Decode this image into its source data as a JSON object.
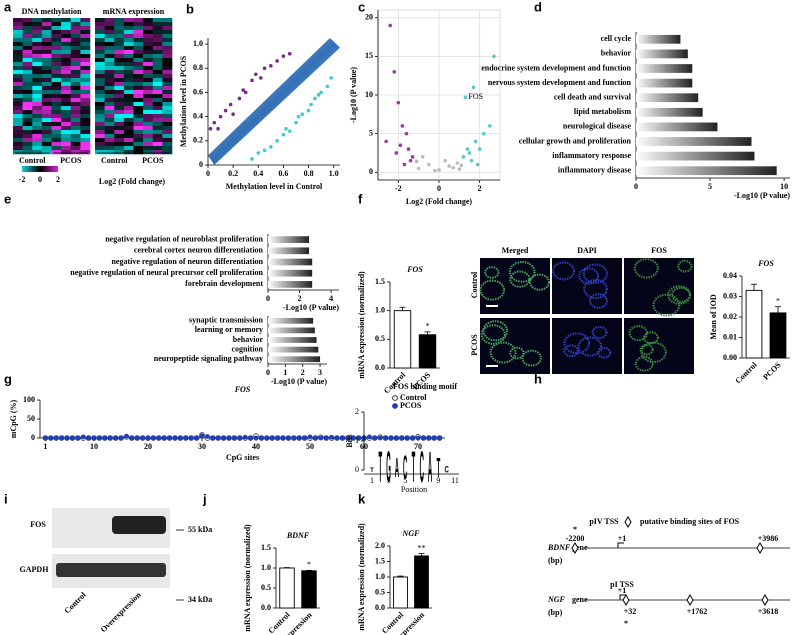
{
  "panel_letters": [
    "a",
    "b",
    "c",
    "d",
    "e",
    "f",
    "g",
    "h",
    "i",
    "j",
    "k"
  ],
  "heatmap": {
    "titles": [
      "DNA methylation",
      "mRNA expression"
    ],
    "groups": [
      "Control",
      "PCOS"
    ],
    "colorbar_ticks": [
      -2,
      0,
      2
    ],
    "colorbar_label": "Log2 (Fold change)"
  },
  "chart_data": [
    {
      "type": "scatter",
      "xlabel": "Methylation level in Control",
      "ylabel": "Methylation level in PCOS",
      "xlim": [
        0,
        1.05
      ],
      "ylim": [
        0,
        1.05
      ],
      "xticks": [
        0,
        0.2,
        0.4,
        0.6,
        0.8,
        {
          "value": 1,
          "label": "1.0"
        }
      ],
      "yticks": [
        0,
        0.2,
        0.4,
        0.6,
        0.8,
        {
          "value": 1,
          "label": "1.0"
        }
      ],
      "density": true,
      "series": [
        {
          "color": "#7b2a8a",
          "x": [
            0.02,
            0.05,
            0.08,
            0.1,
            0.14,
            0.18,
            0.2,
            0.25,
            0.28,
            0.3,
            0.35,
            0.38,
            0.42,
            0.45,
            0.5,
            0.55,
            0.6,
            0.65
          ],
          "y": [
            0.3,
            0.35,
            0.3,
            0.4,
            0.45,
            0.5,
            0.42,
            0.55,
            0.62,
            0.6,
            0.7,
            0.75,
            0.72,
            0.8,
            0.82,
            0.86,
            0.9,
            0.92
          ]
        },
        {
          "color": "#3ec9d6",
          "x": [
            0.35,
            0.4,
            0.45,
            0.5,
            0.55,
            0.6,
            0.62,
            0.65,
            0.7,
            0.72,
            0.75,
            0.8,
            0.82,
            0.85,
            0.88,
            0.9,
            0.95,
            0.98
          ],
          "y": [
            0.05,
            0.1,
            0.12,
            0.15,
            0.2,
            0.25,
            0.3,
            0.28,
            0.35,
            0.4,
            0.42,
            0.45,
            0.5,
            0.55,
            0.58,
            0.6,
            0.65,
            0.72
          ]
        }
      ]
    },
    {
      "type": "scatter",
      "xlabel": "Log2 (Fold change)",
      "ylabel": "-Log10 (P value)",
      "grid": true,
      "xlim": [
        -3,
        3
      ],
      "ylim": [
        -1,
        21
      ],
      "xticks": [
        -2,
        0,
        2
      ],
      "yticks": [
        0,
        5,
        10,
        15,
        20
      ],
      "series": [
        {
          "color": "#9b3a9b",
          "x": [
            -2.4,
            -2.2,
            -2.0,
            -1.8,
            -1.6,
            -1.5,
            -1.3,
            -2.6,
            -1.9,
            -1.4,
            -2.1,
            -1.7
          ],
          "y": [
            19,
            13,
            9,
            6,
            5,
            3,
            2,
            4,
            3.5,
            1.5,
            2.5,
            1
          ]
        },
        {
          "color": "#5cc6d0",
          "x": [
            1.2,
            1.4,
            1.6,
            1.8,
            2.0,
            2.2,
            2.5,
            1.3,
            1.5,
            1.9,
            2.7,
            1.7
          ],
          "y": [
            2,
            3,
            1.5,
            4,
            3,
            5,
            6,
            9.7,
            2.5,
            1,
            15,
            11
          ]
        },
        {
          "color": "#bbbbbb",
          "x": [
            -1,
            -0.5,
            0,
            0.5,
            1,
            -0.8,
            0.3,
            0.7,
            -0.2,
            0.9,
            -1.1,
            1.1
          ],
          "y": [
            0.5,
            1,
            0.3,
            0.8,
            0.4,
            2,
            1.5,
            0.6,
            0.2,
            1.2,
            1.4,
            0.9
          ]
        }
      ],
      "annotations": [
        {
          "text": "FOS",
          "x": 1.3,
          "y": 9.7
        }
      ]
    },
    {
      "type": "hbar",
      "xlabel": "-Log10 (P value)",
      "xlim": [
        0,
        10.4
      ],
      "xticks": [
        0,
        5,
        10
      ],
      "categories": [
        "cell cycle",
        "behavior",
        "endocrine system development and function",
        "nervous system development and function",
        "cell death and survival",
        "lipid metabolism",
        "neurological disease",
        "cellular growth and proliferation",
        "inflammatory response",
        "inflammatory disease"
      ],
      "values": [
        3,
        3.5,
        3.8,
        3.8,
        4.2,
        4.5,
        5.5,
        7.8,
        8,
        9.5
      ]
    },
    {
      "type": "hbar",
      "xlabel": "-Log10 (P value)",
      "xlim": [
        0,
        4.5
      ],
      "xticks": [
        0,
        2,
        4
      ],
      "categories": [
        "negative regulation of neuroblast proliferation",
        "cerebral cortex neuron differentiation",
        "negative regulation of neuron differentiation",
        "negative regulation of neural precursor cell proliferation",
        "forebrain development"
      ],
      "values": [
        2.6,
        2.6,
        2.8,
        2.8,
        2.8
      ]
    },
    {
      "type": "hbar",
      "xlabel": "-Log10 (P value)",
      "xlim": [
        0,
        3.4
      ],
      "xticks": [
        0,
        1,
        2,
        3
      ],
      "categories": [
        "synaptic transmission",
        "learning or memory",
        "behavior",
        "cognition",
        "neuropeptide signaling pathway"
      ],
      "values": [
        2.6,
        2.7,
        2.8,
        2.9,
        3.0
      ]
    },
    {
      "type": "bar",
      "title": "FOS",
      "ylabel": "mRNA expression (normalized)",
      "categories": [
        "Control",
        "PCOS"
      ],
      "values": [
        1.0,
        0.58
      ],
      "errors": [
        0.06,
        0.05
      ],
      "colors": [
        "#ffffff",
        "#000000"
      ],
      "ylim": [
        0,
        1.5
      ],
      "yticks": [
        {
          "value": 0,
          "label": "0.0"
        },
        0.5,
        {
          "value": 1,
          "label": "1.0"
        },
        1.5
      ],
      "annotations": [
        {
          "text": "*",
          "index": 1
        }
      ]
    },
    {
      "type": "bar",
      "title": "FOS",
      "ylabel": "Mean of IOD",
      "categories": [
        "Control",
        "PCOS"
      ],
      "values": [
        0.033,
        0.022
      ],
      "errors": [
        0.003,
        0.003
      ],
      "colors": [
        "#ffffff",
        "#000000"
      ],
      "ylim": [
        0,
        0.04
      ],
      "yticks": [
        {
          "value": 0,
          "label": "0.00"
        },
        0.01,
        0.02,
        0.03,
        0.04
      ],
      "annotations": [
        {
          "text": "*",
          "index": 1
        }
      ]
    },
    {
      "type": "line",
      "title": "FOS",
      "xlabel": "CpG sites",
      "ylabel": "mCpG (%)",
      "xlim": [
        0,
        75
      ],
      "ylim": [
        0,
        100
      ],
      "xticks": [
        1,
        10,
        20,
        30,
        40,
        50,
        60,
        70
      ],
      "yticks": [
        0,
        50,
        100
      ],
      "legend": "upper right",
      "x": [
        1,
        2,
        3,
        4,
        5,
        6,
        7,
        8,
        9,
        10,
        11,
        12,
        13,
        14,
        15,
        16,
        17,
        18,
        19,
        20,
        21,
        22,
        23,
        24,
        25,
        26,
        27,
        28,
        29,
        30,
        31,
        32,
        33,
        34,
        35,
        36,
        37,
        38,
        39,
        40,
        41,
        42,
        43,
        44,
        45,
        46,
        47,
        48,
        49,
        50,
        51,
        52,
        53,
        54,
        55,
        56,
        57,
        58,
        59,
        60,
        61,
        62,
        63,
        64,
        65,
        66,
        67,
        68,
        69,
        70,
        71,
        72,
        73,
        74
      ],
      "series": [
        {
          "name": "Control",
          "color": "#333333",
          "marker": "open",
          "values": [
            0,
            0,
            0,
            0,
            0,
            0,
            0,
            0,
            0,
            0,
            0,
            0,
            0,
            0,
            0,
            3,
            0,
            0,
            0,
            0,
            0,
            0,
            0,
            0,
            0,
            0,
            0,
            0,
            0,
            8,
            0,
            0,
            0,
            0,
            0,
            0,
            0,
            0,
            0,
            5,
            0,
            0,
            0,
            0,
            0,
            0,
            0,
            0,
            0,
            0,
            0,
            2,
            0,
            0,
            0,
            0,
            0,
            0,
            0,
            0,
            0,
            0,
            2,
            0,
            0,
            0,
            0,
            0,
            0,
            3,
            0,
            0,
            0,
            0
          ]
        },
        {
          "name": "PCOS",
          "color": "#1f3fbf",
          "marker": "filled",
          "values": [
            0,
            0,
            0,
            0,
            0,
            0,
            0,
            3,
            0,
            0,
            0,
            0,
            0,
            0,
            0,
            5,
            0,
            0,
            0,
            0,
            0,
            0,
            0,
            0,
            0,
            0,
            0,
            0,
            0,
            6,
            4,
            0,
            0,
            0,
            0,
            0,
            0,
            2,
            0,
            0,
            0,
            0,
            0,
            0,
            0,
            0,
            0,
            0,
            0,
            3,
            0,
            0,
            0,
            2,
            0,
            0,
            0,
            0,
            0,
            0,
            3,
            0,
            0,
            0,
            0,
            0,
            0,
            0,
            0,
            0,
            0,
            0,
            0,
            0
          ]
        }
      ]
    },
    {
      "type": "bar",
      "title": "BDNF",
      "ylabel": "mRNA expression (normalized)",
      "categories": [
        "Control",
        "Overexpression"
      ],
      "values": [
        1.0,
        0.93
      ],
      "errors": [
        0.01,
        0.01
      ],
      "colors": [
        "#ffffff",
        "#000000"
      ],
      "ylim": [
        0,
        1.5
      ],
      "yticks": [
        {
          "value": 0,
          "label": "0.0"
        },
        0.5,
        {
          "value": 1,
          "label": "1.0"
        },
        1.5
      ],
      "annotations": [
        {
          "text": "*",
          "index": 1
        }
      ]
    },
    {
      "type": "bar",
      "title": "NGF",
      "ylabel": "mRNA expression (normalized)",
      "categories": [
        "Control",
        "Overexpression"
      ],
      "values": [
        1.0,
        1.68
      ],
      "errors": [
        0.03,
        0.08
      ],
      "colors": [
        "#ffffff",
        "#000000"
      ],
      "ylim": [
        0,
        2
      ],
      "yticks": [
        {
          "value": 0,
          "label": "0.0"
        },
        0.5,
        {
          "value": 1,
          "label": "1.0"
        },
        1.5,
        {
          "value": 2,
          "label": "2.0"
        }
      ],
      "annotations": [
        {
          "text": "**",
          "index": 1
        }
      ]
    }
  ],
  "microscopy": {
    "columns": [
      "Merged",
      "DAPI",
      "FOS"
    ],
    "rows": [
      "Control",
      "PCOS"
    ]
  },
  "motif": {
    "title": "FOS binding motif",
    "ylabel": "Bits",
    "xlabel": "Position",
    "yticks": [
      0,
      1,
      2
    ],
    "xticks": [
      1,
      3,
      5,
      7,
      9,
      11
    ],
    "letters": [
      {
        "letter": "T",
        "position": 2,
        "bits": 1.9,
        "color": "#e03020"
      },
      {
        "letter": "G",
        "position": 3,
        "bits": 1.9,
        "color": "#f0a020"
      },
      {
        "letter": "A",
        "position": 4,
        "bits": 1.2,
        "color": "#20a040"
      },
      {
        "letter": "C",
        "position": 5,
        "bits": 1.5,
        "color": "#2040d0"
      },
      {
        "letter": "T",
        "position": 6,
        "bits": 1.9,
        "color": "#e03020"
      },
      {
        "letter": "C",
        "position": 7,
        "bits": 1.9,
        "color": "#2040d0"
      },
      {
        "letter": "A",
        "position": 8,
        "bits": 1.9,
        "color": "#20a040"
      },
      {
        "letter": "T",
        "position": 9,
        "bits": 1.2,
        "color": "#e03020"
      },
      {
        "letter": "C",
        "position": 10,
        "bits": 0.4,
        "color": "#2040d0"
      },
      {
        "letter": "T",
        "position": 1,
        "bits": 0.3,
        "color": "#e03020"
      }
    ]
  },
  "genes": {
    "legend": "putative binding sites of FOS",
    "unit": "(bp)",
    "star": "*",
    "rows": [
      {
        "name": "BDNF",
        "suffix": "gene",
        "tss": "pIV TSS",
        "labels": [
          "-2200",
          "+1",
          "+3986"
        ]
      },
      {
        "name": "NGF",
        "suffix": "gene",
        "tss": "pI TSS",
        "labels": [
          "+1",
          "+32",
          "+1762",
          "+3618"
        ]
      }
    ]
  },
  "blot": {
    "bands": [
      "FOS",
      "GAPDH"
    ],
    "markers": [
      "55 kDa",
      "34 kDa"
    ],
    "lanes": [
      "Control",
      "Overexpression"
    ]
  }
}
